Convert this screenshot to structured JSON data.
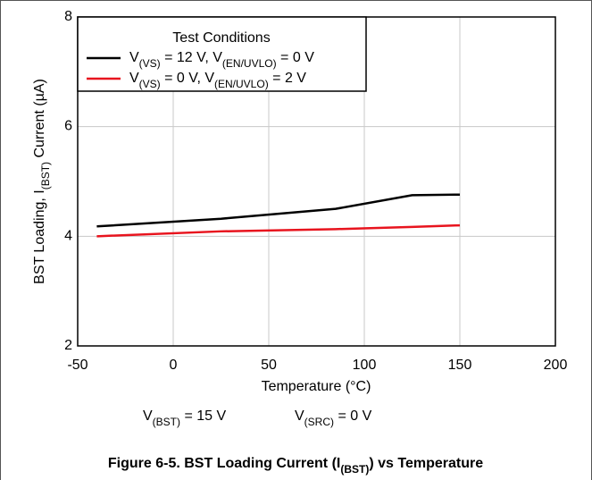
{
  "chart_data": {
    "type": "line",
    "x": [
      -40,
      25,
      85,
      125,
      150
    ],
    "series": [
      {
        "name": "V(VS) = 12 V, V(EN/UVLO) = 0 V",
        "color": "#000000",
        "values": [
          4.18,
          4.32,
          4.5,
          4.75,
          4.76
        ]
      },
      {
        "name": "V(VS) = 0 V, V(EN/UVLO) = 2 V",
        "color": "#e8141e",
        "values": [
          4.0,
          4.09,
          4.13,
          4.17,
          4.2
        ]
      }
    ],
    "legend_title": "Test Conditions",
    "xlabel": "Temperature (°C)",
    "ylabel": "BST Loading, I(BST) Current (µA)",
    "xlim": [
      -50,
      200
    ],
    "xticks": [
      -50,
      0,
      50,
      100,
      150,
      200
    ],
    "ylim": [
      2,
      8
    ],
    "yticks": [
      2,
      4,
      6,
      8
    ],
    "grid": true,
    "annotations": [
      "V(BST) = 15 V",
      "V(SRC) = 0 V"
    ],
    "caption": "Figure 6-5. BST Loading Current (I(BST)) vs Temperature"
  }
}
